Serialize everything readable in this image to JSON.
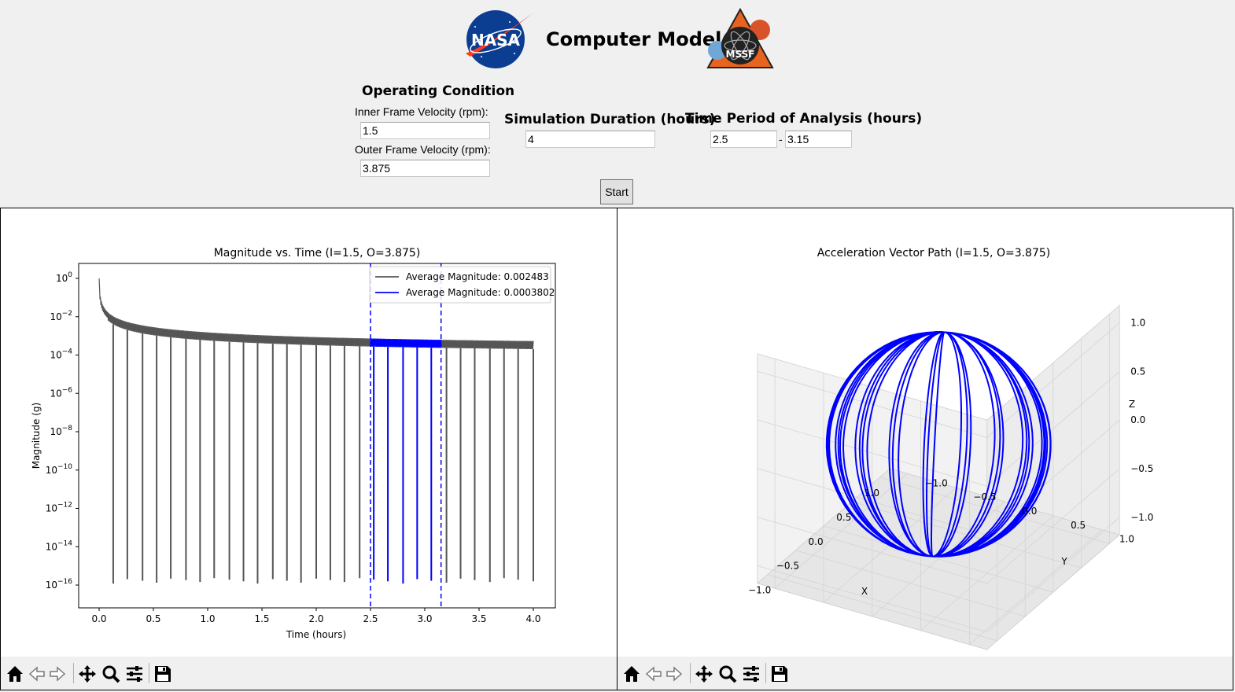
{
  "header": {
    "title": "Computer Model",
    "logo_left_text": "NASA",
    "logo_right_text": "MSSF"
  },
  "operating_condition": {
    "heading": "Operating Condition",
    "inner_label": "Inner Frame Velocity (rpm):",
    "inner_value": "1.5",
    "outer_label": "Outer Frame Velocity (rpm):",
    "outer_value": "3.875"
  },
  "simulation": {
    "heading": "Simulation Duration (hours)",
    "value": "4"
  },
  "analysis": {
    "heading": "Time Period of Analysis (hours)",
    "start_value": "2.5",
    "separator": "-",
    "end_value": "3.15"
  },
  "start_label": "Start",
  "toolbar_icons": [
    "home-icon",
    "back-arrow-icon",
    "forward-arrow-icon",
    "pan-icon",
    "zoom-icon",
    "configure-subplots-icon",
    "save-icon"
  ],
  "chart_data": [
    {
      "type": "line",
      "title": "Magnitude vs. Time (I=1.5, O=3.875)",
      "xlabel": "Time (hours)",
      "ylabel": "Magnitude (g)",
      "yscale": "log",
      "xlim": [
        -0.2,
        4.2
      ],
      "ylim": [
        3e-17,
        4.5
      ],
      "xticks": [
        "0.0",
        "0.5",
        "1.0",
        "1.5",
        "2.0",
        "2.5",
        "3.0",
        "3.5",
        "4.0"
      ],
      "yticks": [
        {
          "base": "10",
          "exp": "0"
        },
        {
          "base": "10",
          "exp": "−2"
        },
        {
          "base": "10",
          "exp": "−4"
        },
        {
          "base": "10",
          "exp": "−6"
        },
        {
          "base": "10",
          "exp": "−8"
        },
        {
          "base": "10",
          "exp": "−10"
        },
        {
          "base": "10",
          "exp": "−12"
        },
        {
          "base": "10",
          "exp": "−14"
        },
        {
          "base": "10",
          "exp": "−16"
        }
      ],
      "legend_position": "top-right",
      "series": [
        {
          "name": "Average Magnitude: 0.002483",
          "color": "#555555",
          "x_range": [
            0,
            4.0
          ]
        },
        {
          "name": "Average Magnitude: 0.0003802",
          "color": "#0000ff",
          "x_range": [
            2.5,
            3.15
          ]
        }
      ],
      "analysis_lines": [
        2.5,
        3.15
      ],
      "dip_times": [
        0.13,
        0.26,
        0.4,
        0.53,
        0.66,
        0.8,
        0.93,
        1.06,
        1.2,
        1.33,
        1.46,
        1.6,
        1.73,
        1.86,
        2.0,
        2.13,
        2.26,
        2.4,
        2.53,
        2.66,
        2.8,
        2.93,
        3.06,
        3.2,
        3.33,
        3.46,
        3.6,
        3.73,
        3.86,
        4.0
      ],
      "dip_floor": 2e-16
    },
    {
      "type": "3d-line",
      "title": "Acceleration Vector Path (I=1.5, O=3.875)",
      "xlabel": "X",
      "ylabel": "Y",
      "zlabel": "Z",
      "xticks": [
        "−1.0",
        "−0.5",
        "0.0",
        "0.5",
        "1.0"
      ],
      "yticks": [
        "−1.0",
        "−0.5",
        "0.0",
        "0.5",
        "1.0"
      ],
      "zticks": [
        "−1.0",
        "−0.5",
        "0.0",
        "0.5",
        "1.0"
      ],
      "xlim": [
        -1,
        1
      ],
      "ylim": [
        -1,
        1
      ],
      "zlim": [
        -1,
        1
      ],
      "series": [
        {
          "color": "#0000ff",
          "description": "unit sphere wrapping path"
        }
      ]
    }
  ]
}
